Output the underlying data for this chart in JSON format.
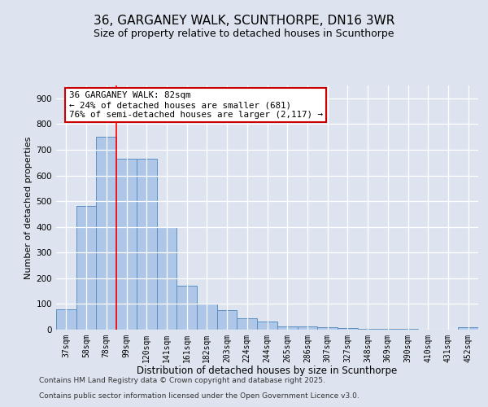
{
  "title": "36, GARGANEY WALK, SCUNTHORPE, DN16 3WR",
  "subtitle": "Size of property relative to detached houses in Scunthorpe",
  "xlabel": "Distribution of detached houses by size in Scunthorpe",
  "ylabel": "Number of detached properties",
  "bar_labels": [
    "37sqm",
    "58sqm",
    "78sqm",
    "99sqm",
    "120sqm",
    "141sqm",
    "161sqm",
    "182sqm",
    "203sqm",
    "224sqm",
    "244sqm",
    "265sqm",
    "286sqm",
    "307sqm",
    "327sqm",
    "348sqm",
    "369sqm",
    "390sqm",
    "410sqm",
    "431sqm",
    "452sqm"
  ],
  "bar_values": [
    80,
    480,
    750,
    665,
    665,
    400,
    170,
    100,
    75,
    45,
    32,
    13,
    12,
    8,
    6,
    4,
    3,
    2,
    1,
    1,
    8
  ],
  "bar_color": "#aec6e8",
  "bar_edgecolor": "#5a8fc0",
  "bar_linewidth": 0.7,
  "red_line_index": 2.5,
  "annotation_text": "36 GARGANEY WALK: 82sqm\n← 24% of detached houses are smaller (681)\n76% of semi-detached houses are larger (2,117) →",
  "annotation_box_color": "white",
  "annotation_box_edgecolor": "#cc0000",
  "annotation_fontsize": 7.8,
  "ylim": [
    0,
    950
  ],
  "yticks": [
    0,
    100,
    200,
    300,
    400,
    500,
    600,
    700,
    800,
    900
  ],
  "background_color": "#dde4ef",
  "axes_background_color": "#dde4ef",
  "grid_color": "white",
  "title_fontsize": 11,
  "subtitle_fontsize": 9,
  "xlabel_fontsize": 8.5,
  "ylabel_fontsize": 8,
  "tick_fontsize": 7,
  "footer_line1": "Contains HM Land Registry data © Crown copyright and database right 2025.",
  "footer_line2": "Contains public sector information licensed under the Open Government Licence v3.0."
}
